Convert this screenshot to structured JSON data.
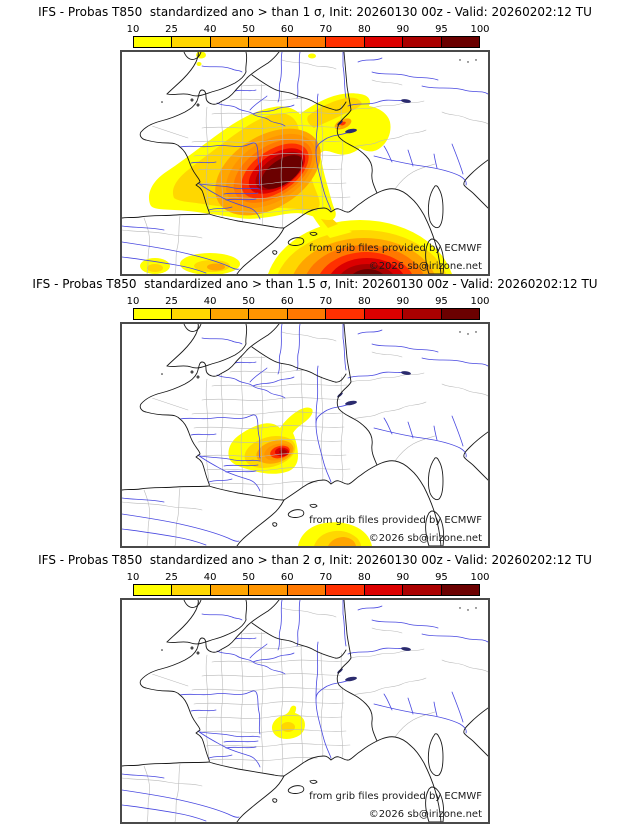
{
  "panels": [
    {
      "id": "sigma-1",
      "title": "IFS - Probas T850  standardized ano > than 1 σ, Init: 20260130 00z - Valid: 20260202:12 TU",
      "sigma_threshold": "1"
    },
    {
      "id": "sigma-1.5",
      "title": "IFS - Probas T850  standardized ano > than 1.5 σ, Init: 20260130 00z - Valid: 20260202:12 TU",
      "sigma_threshold": "1.5"
    },
    {
      "id": "sigma-2",
      "title": "IFS - Probas T850  standardized ano > than 2 σ, Init: 20260130 00z - Valid: 20260202:12 TU",
      "sigma_threshold": "2"
    }
  ],
  "colorbar": {
    "labels": [
      "10",
      "25",
      "40",
      "50",
      "60",
      "70",
      "80",
      "90",
      "95",
      "100"
    ],
    "colors": [
      "#FFFF00",
      "#FFD700",
      "#FFA500",
      "#FF9400",
      "#FF7800",
      "#FF3000",
      "#DC0000",
      "#AA0000",
      "#6B0000"
    ]
  },
  "attribution": {
    "source": "from grib files provided by ECMWF",
    "copyright": "©2026 sb@irizone.net"
  },
  "map_colors": {
    "coastline": "#1a1a1a",
    "department_border": "#b9b9b9",
    "river": "#4848e0",
    "frame": "#4a4a4a"
  },
  "map_content": {
    "region": "France and surrounding western Europe",
    "panels": [
      {
        "sigma_threshold": "1",
        "hotspots": [
          "large maximum over southwest France reaching the 95-100 band",
          "second maximum over the western Mediterranean south of France reaching 95-100 at the lower edge",
          "low-probability yellow band stretching northeast toward Burgundy / Jura",
          "small yellow patches over southern England and northeast Spain"
        ]
      },
      {
        "sigma_threshold": "1.5",
        "hotspots": [
          "moderate blob over southwest France around Toulouse with a 90-95 core",
          "small yellow-orange area on the Mediterranean at the southern map edge"
        ]
      },
      {
        "sigma_threshold": "2",
        "hotspots": [
          "small 10-25 yellow patch near Toulouse only"
        ]
      }
    ]
  }
}
